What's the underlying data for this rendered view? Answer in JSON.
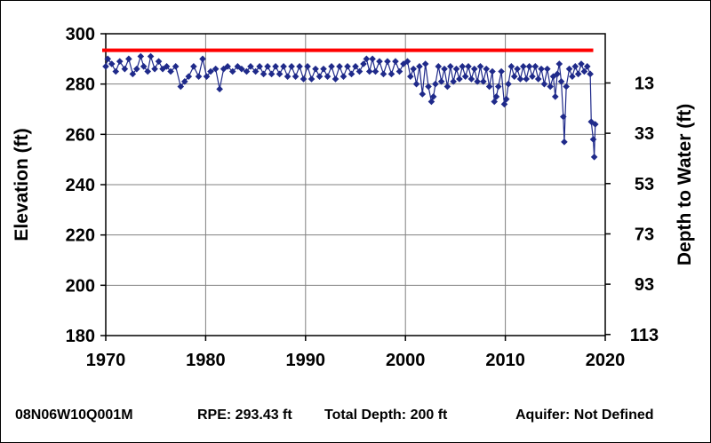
{
  "footer": {
    "well_id": "08N06W10Q001M",
    "rpe": "RPE: 293.43 ft",
    "total_depth": "Total Depth: 200 ft",
    "aquifer": "Aquifer: Not Defined"
  },
  "colors": {
    "series": "#1F2A8A",
    "reference_line": "#FF0000",
    "grid": "#808080",
    "axis": "#000000"
  },
  "chart_data": {
    "type": "line",
    "title": "",
    "xlabel": "",
    "ylabel": "Elevation (ft)",
    "ylabel_right": "Depth to Water (ft)",
    "xlim": [
      1970,
      2020
    ],
    "ylim": [
      180,
      300
    ],
    "x_ticks": [
      1970,
      1980,
      1990,
      2000,
      2010,
      2020
    ],
    "y_ticks": [
      180,
      200,
      220,
      240,
      260,
      280,
      300
    ],
    "y2_ticks": [
      113,
      93,
      73,
      53,
      33,
      13
    ],
    "grid": true,
    "legend": "none",
    "reference_line": {
      "y": 293.43
    },
    "series": [
      {
        "marker": "diamond",
        "points": [
          [
            1970.0,
            287
          ],
          [
            1970.2,
            290
          ],
          [
            1970.6,
            288
          ],
          [
            1971.0,
            285
          ],
          [
            1971.4,
            289
          ],
          [
            1971.9,
            286
          ],
          [
            1972.3,
            290
          ],
          [
            1972.7,
            284
          ],
          [
            1973.1,
            286
          ],
          [
            1973.5,
            291
          ],
          [
            1973.8,
            287
          ],
          [
            1974.2,
            285
          ],
          [
            1974.5,
            291
          ],
          [
            1974.9,
            286
          ],
          [
            1975.3,
            289
          ],
          [
            1975.7,
            286
          ],
          [
            1976.1,
            287
          ],
          [
            1976.5,
            285
          ],
          [
            1977.0,
            287
          ],
          [
            1977.5,
            279
          ],
          [
            1977.9,
            281
          ],
          [
            1978.3,
            283
          ],
          [
            1978.8,
            287
          ],
          [
            1979.3,
            283
          ],
          [
            1979.7,
            290
          ],
          [
            1980.1,
            283
          ],
          [
            1980.5,
            285
          ],
          [
            1981.0,
            286
          ],
          [
            1981.4,
            278
          ],
          [
            1981.8,
            286
          ],
          [
            1982.2,
            287
          ],
          [
            1982.7,
            285
          ],
          [
            1983.2,
            287
          ],
          [
            1983.6,
            286
          ],
          [
            1984.1,
            285
          ],
          [
            1984.5,
            287
          ],
          [
            1985.0,
            285
          ],
          [
            1985.4,
            287
          ],
          [
            1985.8,
            284
          ],
          [
            1986.2,
            287
          ],
          [
            1986.6,
            284
          ],
          [
            1987.0,
            287
          ],
          [
            1987.4,
            284
          ],
          [
            1987.8,
            287
          ],
          [
            1988.2,
            283
          ],
          [
            1988.6,
            287
          ],
          [
            1989.0,
            283
          ],
          [
            1989.4,
            287
          ],
          [
            1989.8,
            282
          ],
          [
            1990.2,
            287
          ],
          [
            1990.6,
            282
          ],
          [
            1991.0,
            286
          ],
          [
            1991.4,
            283
          ],
          [
            1991.8,
            286
          ],
          [
            1992.2,
            283
          ],
          [
            1992.6,
            287
          ],
          [
            1993.0,
            282
          ],
          [
            1993.4,
            287
          ],
          [
            1993.8,
            283
          ],
          [
            1994.2,
            287
          ],
          [
            1994.6,
            284
          ],
          [
            1995.0,
            287
          ],
          [
            1995.4,
            285
          ],
          [
            1995.8,
            288
          ],
          [
            1996.1,
            290
          ],
          [
            1996.4,
            285
          ],
          [
            1996.7,
            290
          ],
          [
            1997.0,
            285
          ],
          [
            1997.4,
            289
          ],
          [
            1997.8,
            284
          ],
          [
            1998.2,
            289
          ],
          [
            1998.6,
            284
          ],
          [
            1999.0,
            289
          ],
          [
            1999.4,
            285
          ],
          [
            1999.8,
            288
          ],
          [
            2000.2,
            289
          ],
          [
            2000.5,
            283
          ],
          [
            2000.8,
            286
          ],
          [
            2001.1,
            280
          ],
          [
            2001.4,
            287
          ],
          [
            2001.7,
            276
          ],
          [
            2002.0,
            288
          ],
          [
            2002.3,
            279
          ],
          [
            2002.6,
            273
          ],
          [
            2002.8,
            275
          ],
          [
            2003.0,
            280
          ],
          [
            2003.3,
            287
          ],
          [
            2003.6,
            281
          ],
          [
            2003.9,
            286
          ],
          [
            2004.2,
            279
          ],
          [
            2004.5,
            287
          ],
          [
            2004.8,
            281
          ],
          [
            2005.1,
            286
          ],
          [
            2005.4,
            282
          ],
          [
            2005.7,
            287
          ],
          [
            2006.0,
            283
          ],
          [
            2006.3,
            287
          ],
          [
            2006.6,
            282
          ],
          [
            2006.9,
            286
          ],
          [
            2007.2,
            281
          ],
          [
            2007.5,
            287
          ],
          [
            2007.8,
            281
          ],
          [
            2008.1,
            286
          ],
          [
            2008.4,
            279
          ],
          [
            2008.7,
            285
          ],
          [
            2008.9,
            273
          ],
          [
            2009.1,
            275
          ],
          [
            2009.3,
            279
          ],
          [
            2009.6,
            285
          ],
          [
            2009.9,
            272
          ],
          [
            2010.1,
            274
          ],
          [
            2010.3,
            280
          ],
          [
            2010.6,
            287
          ],
          [
            2010.9,
            283
          ],
          [
            2011.2,
            286
          ],
          [
            2011.5,
            282
          ],
          [
            2011.8,
            287
          ],
          [
            2012.1,
            282
          ],
          [
            2012.4,
            287
          ],
          [
            2012.7,
            283
          ],
          [
            2013.0,
            287
          ],
          [
            2013.3,
            282
          ],
          [
            2013.6,
            286
          ],
          [
            2013.9,
            280
          ],
          [
            2014.2,
            286
          ],
          [
            2014.5,
            279
          ],
          [
            2014.8,
            283
          ],
          [
            2015.0,
            275
          ],
          [
            2015.2,
            284
          ],
          [
            2015.4,
            288
          ],
          [
            2015.6,
            281
          ],
          [
            2015.8,
            267
          ],
          [
            2015.9,
            257
          ],
          [
            2016.1,
            279
          ],
          [
            2016.4,
            286
          ],
          [
            2016.7,
            283
          ],
          [
            2017.0,
            287
          ],
          [
            2017.3,
            284
          ],
          [
            2017.6,
            288
          ],
          [
            2017.9,
            285
          ],
          [
            2018.2,
            287
          ],
          [
            2018.5,
            284
          ],
          [
            2018.6,
            265
          ],
          [
            2018.8,
            258
          ],
          [
            2018.9,
            251
          ],
          [
            2019.0,
            264
          ]
        ]
      }
    ]
  }
}
